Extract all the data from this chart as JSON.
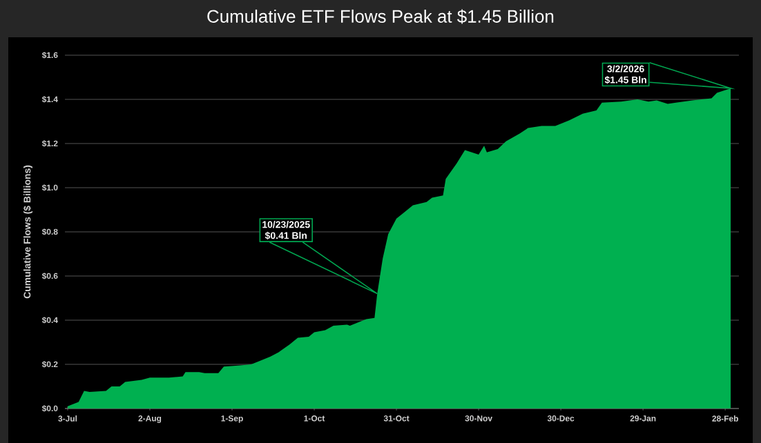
{
  "chart_data": {
    "type": "area",
    "title": "Cumulative ETF Flows Peak at $1.45 Billion",
    "ylabel": "Cumulative Flows ($ Billions)",
    "color": "#00b050",
    "grid": "y",
    "x": [
      "2025-07-03",
      "2025-07-07",
      "2025-07-09",
      "2025-07-11",
      "2025-07-17",
      "2025-07-19",
      "2025-07-22",
      "2025-07-24",
      "2025-07-30",
      "2025-08-02",
      "2025-08-09",
      "2025-08-14",
      "2025-08-15",
      "2025-08-20",
      "2025-08-22",
      "2025-08-27",
      "2025-08-29",
      "2025-09-04",
      "2025-09-08",
      "2025-09-11",
      "2025-09-15",
      "2025-09-18",
      "2025-09-22",
      "2025-09-25",
      "2025-09-29",
      "2025-10-01",
      "2025-10-05",
      "2025-10-08",
      "2025-10-13",
      "2025-10-14",
      "2025-10-17",
      "2025-10-20",
      "2025-10-23",
      "2025-10-24",
      "2025-10-26",
      "2025-10-28",
      "2025-10-31",
      "2025-11-03",
      "2025-11-06",
      "2025-11-11",
      "2025-11-13",
      "2025-11-17",
      "2025-11-18",
      "2025-11-22",
      "2025-11-25",
      "2025-11-30",
      "2025-12-02",
      "2025-12-03",
      "2025-12-07",
      "2025-12-10",
      "2025-12-15",
      "2025-12-18",
      "2025-12-23",
      "2025-12-28",
      "2026-01-02",
      "2026-01-07",
      "2026-01-12",
      "2026-01-14",
      "2026-01-21",
      "2026-01-27",
      "2026-01-31",
      "2026-02-03",
      "2026-02-07",
      "2026-02-10",
      "2026-02-16",
      "2026-02-23",
      "2026-02-25",
      "2026-03-02"
    ],
    "values": [
      0.01,
      0.03,
      0.08,
      0.075,
      0.08,
      0.1,
      0.1,
      0.12,
      0.13,
      0.14,
      0.14,
      0.145,
      0.165,
      0.165,
      0.16,
      0.16,
      0.19,
      0.195,
      0.2,
      0.215,
      0.235,
      0.255,
      0.29,
      0.32,
      0.325,
      0.345,
      0.355,
      0.375,
      0.38,
      0.375,
      0.39,
      0.405,
      0.41,
      0.52,
      0.68,
      0.79,
      0.86,
      0.89,
      0.92,
      0.935,
      0.955,
      0.965,
      1.04,
      1.11,
      1.17,
      1.15,
      1.19,
      1.16,
      1.175,
      1.21,
      1.245,
      1.27,
      1.28,
      1.28,
      1.305,
      1.335,
      1.35,
      1.385,
      1.39,
      1.4,
      1.39,
      1.395,
      1.38,
      1.385,
      1.395,
      1.405,
      1.43,
      1.45
    ],
    "xlim": [
      "2025-07-02",
      "2026-03-05"
    ],
    "xticks": [
      {
        "value": "2025-07-03",
        "label": "3-Jul"
      },
      {
        "value": "2025-08-02",
        "label": "2-Aug"
      },
      {
        "value": "2025-09-01",
        "label": "1-Sep"
      },
      {
        "value": "2025-10-01",
        "label": "1-Oct"
      },
      {
        "value": "2025-10-31",
        "label": "31-Oct"
      },
      {
        "value": "2025-11-30",
        "label": "30-Nov"
      },
      {
        "value": "2025-12-30",
        "label": "30-Dec"
      },
      {
        "value": "2026-01-29",
        "label": "29-Jan"
      },
      {
        "value": "2026-02-28",
        "label": "28-Feb"
      }
    ],
    "ylim": [
      0,
      1.6
    ],
    "yticks": [
      {
        "value": 0,
        "label": "$0.0"
      },
      {
        "value": 0.2,
        "label": "$0.2"
      },
      {
        "value": 0.4,
        "label": "$0.4"
      },
      {
        "value": 0.6,
        "label": "$0.6"
      },
      {
        "value": 0.8,
        "label": "$0.8"
      },
      {
        "value": 1.0,
        "label": "$1.0"
      },
      {
        "value": 1.2,
        "label": "$1.2"
      },
      {
        "value": 1.4,
        "label": "$1.4"
      },
      {
        "value": 1.6,
        "label": "$1.6"
      }
    ],
    "annotations": [
      "10/23/2025",
      "$0.41 Bln",
      "3/2/2026",
      "$1.45 Bln"
    ]
  }
}
